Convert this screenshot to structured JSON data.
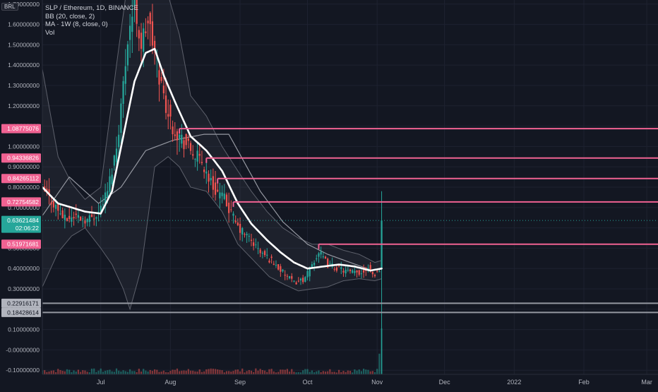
{
  "header": {
    "symbol_line": "SLP / Ethereum, 1D, BINANCE",
    "indicators": [
      "BB (20, close, 2)",
      "MA · 1W (8, close, 0)",
      "Vol"
    ],
    "currency_badge": "BRL"
  },
  "colors": {
    "background": "#131722",
    "up": "#26a69a",
    "down": "#ef5350",
    "level_line": "#f06292",
    "support_line": "#9598a1",
    "bb_line": "#5d606b",
    "ma_line": "#ffffff",
    "weekly_ma": "#9598a1",
    "current_price": "#26a69a"
  },
  "current_price_label": {
    "price": "0.63621484",
    "countdown": "02:06:22"
  },
  "chart_data": {
    "type": "candlestick",
    "title": "SLP / Ethereum, 1D, BINANCE",
    "ylim": [
      -0.12,
      1.72
    ],
    "y_ticks": [
      -0.1,
      0.0,
      0.1,
      0.2,
      0.3,
      0.4,
      0.5,
      0.6,
      0.7,
      0.8,
      0.9,
      1.0,
      1.1,
      1.2,
      1.3,
      1.4,
      1.5,
      1.6,
      1.7
    ],
    "y_tick_labels": [
      "-0.10000000",
      "-0.00000000",
      "0.10000000",
      "0.20000000",
      "0.30000000",
      "0.40000000",
      "0.50000000",
      "0.60000000",
      "0.70000000",
      "0.80000000",
      "0.90000000",
      "1.00000000",
      "1.10000000",
      "1.20000000",
      "1.30000000",
      "1.40000000",
      "1.50000000",
      "1.60000000",
      "1.70000000"
    ],
    "x_range": [
      "2021-06-05",
      "2022-03-06"
    ],
    "x_ticks": [
      {
        "date": "2021-07-01",
        "label": "Jul"
      },
      {
        "date": "2021-08-01",
        "label": "Aug"
      },
      {
        "date": "2021-09-01",
        "label": "Sep"
      },
      {
        "date": "2021-10-01",
        "label": "Oct"
      },
      {
        "date": "2021-11-01",
        "label": "Nov"
      },
      {
        "date": "2021-12-01",
        "label": "Dec"
      },
      {
        "date": "2022-01-01",
        "label": "2022"
      },
      {
        "date": "2022-02-01",
        "label": "Feb"
      },
      {
        "date": "2022-03-01",
        "label": "Mar"
      }
    ],
    "close_keypoints": [
      [
        "2021-06-05",
        0.79
      ],
      [
        "2021-06-10",
        0.72
      ],
      [
        "2021-06-15",
        0.64
      ],
      [
        "2021-06-20",
        0.66
      ],
      [
        "2021-06-25",
        0.64
      ],
      [
        "2021-06-30",
        0.68
      ],
      [
        "2021-07-04",
        0.78
      ],
      [
        "2021-07-08",
        1.0
      ],
      [
        "2021-07-11",
        1.3
      ],
      [
        "2021-07-13",
        1.55
      ],
      [
        "2021-07-16",
        1.7
      ],
      [
        "2021-07-19",
        1.5
      ],
      [
        "2021-07-22",
        1.62
      ],
      [
        "2021-07-26",
        1.4
      ],
      [
        "2021-07-29",
        1.25
      ],
      [
        "2021-08-01",
        1.12
      ],
      [
        "2021-08-05",
        1.05
      ],
      [
        "2021-08-10",
        0.98
      ],
      [
        "2021-08-15",
        0.92
      ],
      [
        "2021-08-20",
        0.8
      ],
      [
        "2021-08-25",
        0.74
      ],
      [
        "2021-08-31",
        0.6
      ],
      [
        "2021-09-05",
        0.55
      ],
      [
        "2021-09-10",
        0.48
      ],
      [
        "2021-09-15",
        0.44
      ],
      [
        "2021-09-20",
        0.38
      ],
      [
        "2021-09-25",
        0.33
      ],
      [
        "2021-09-30",
        0.35
      ],
      [
        "2021-10-03",
        0.42
      ],
      [
        "2021-10-06",
        0.48
      ],
      [
        "2021-10-10",
        0.42
      ],
      [
        "2021-10-15",
        0.4
      ],
      [
        "2021-10-20",
        0.38
      ],
      [
        "2021-10-25",
        0.38
      ],
      [
        "2021-10-28",
        0.41
      ],
      [
        "2021-10-30",
        0.37
      ],
      [
        "2021-11-01",
        0.38
      ],
      [
        "2021-11-02",
        0.4
      ],
      [
        "2021-11-03",
        0.636
      ]
    ],
    "last_candle": {
      "date": "2021-11-03",
      "open": 0.4,
      "high": 0.78,
      "low": -0.13,
      "close": 0.636
    },
    "sma20_keypoints": [
      [
        "2021-06-05",
        0.8
      ],
      [
        "2021-06-12",
        0.72
      ],
      [
        "2021-06-18",
        0.7
      ],
      [
        "2021-06-24",
        0.68
      ],
      [
        "2021-07-01",
        0.67
      ],
      [
        "2021-07-06",
        0.78
      ],
      [
        "2021-07-11",
        1.05
      ],
      [
        "2021-07-16",
        1.32
      ],
      [
        "2021-07-21",
        1.46
      ],
      [
        "2021-07-25",
        1.48
      ],
      [
        "2021-07-29",
        1.35
      ],
      [
        "2021-08-03",
        1.22
      ],
      [
        "2021-08-10",
        1.05
      ],
      [
        "2021-08-17",
        0.98
      ],
      [
        "2021-08-24",
        0.88
      ],
      [
        "2021-08-31",
        0.72
      ],
      [
        "2021-09-06",
        0.62
      ],
      [
        "2021-09-13",
        0.54
      ],
      [
        "2021-09-19",
        0.48
      ],
      [
        "2021-09-25",
        0.43
      ],
      [
        "2021-10-01",
        0.4
      ],
      [
        "2021-10-08",
        0.41
      ],
      [
        "2021-10-15",
        0.42
      ],
      [
        "2021-10-22",
        0.41
      ],
      [
        "2021-10-29",
        0.39
      ],
      [
        "2021-11-03",
        0.4
      ]
    ],
    "bb_upper_keypoints": [
      [
        "2021-06-05",
        1.38
      ],
      [
        "2021-06-12",
        0.95
      ],
      [
        "2021-06-18",
        0.82
      ],
      [
        "2021-06-24",
        0.74
      ],
      [
        "2021-07-01",
        0.8
      ],
      [
        "2021-07-08",
        1.4
      ],
      [
        "2021-07-14",
        1.9
      ],
      [
        "2021-07-22",
        1.92
      ],
      [
        "2021-07-29",
        1.82
      ],
      [
        "2021-08-05",
        1.55
      ],
      [
        "2021-08-10",
        1.25
      ],
      [
        "2021-08-17",
        1.15
      ],
      [
        "2021-08-24",
        1.0
      ],
      [
        "2021-08-31",
        0.88
      ],
      [
        "2021-09-06",
        0.78
      ],
      [
        "2021-09-13",
        0.68
      ],
      [
        "2021-09-20",
        0.6
      ],
      [
        "2021-09-27",
        0.55
      ],
      [
        "2021-10-03",
        0.52
      ],
      [
        "2021-10-10",
        0.52
      ],
      [
        "2021-10-17",
        0.49
      ],
      [
        "2021-10-24",
        0.47
      ],
      [
        "2021-10-31",
        0.43
      ],
      [
        "2021-11-03",
        0.44
      ]
    ],
    "bb_lower_keypoints": [
      [
        "2021-06-05",
        0.31
      ],
      [
        "2021-06-12",
        0.48
      ],
      [
        "2021-06-18",
        0.56
      ],
      [
        "2021-06-24",
        0.6
      ],
      [
        "2021-07-01",
        0.5
      ],
      [
        "2021-07-06",
        0.42
      ],
      [
        "2021-07-11",
        0.3
      ],
      [
        "2021-07-14",
        0.2
      ],
      [
        "2021-07-19",
        0.4
      ],
      [
        "2021-07-25",
        0.9
      ],
      [
        "2021-07-31",
        0.95
      ],
      [
        "2021-08-05",
        0.9
      ],
      [
        "2021-08-10",
        0.8
      ],
      [
        "2021-08-17",
        0.78
      ],
      [
        "2021-08-24",
        0.68
      ],
      [
        "2021-08-31",
        0.52
      ],
      [
        "2021-09-07",
        0.44
      ],
      [
        "2021-09-14",
        0.36
      ],
      [
        "2021-09-21",
        0.32
      ],
      [
        "2021-09-27",
        0.29
      ],
      [
        "2021-10-03",
        0.3
      ],
      [
        "2021-10-10",
        0.31
      ],
      [
        "2021-10-17",
        0.34
      ],
      [
        "2021-10-24",
        0.35
      ],
      [
        "2021-10-31",
        0.34
      ],
      [
        "2021-11-03",
        0.35
      ]
    ],
    "weekly_ma_keypoints": [
      [
        "2021-06-05",
        0.66
      ],
      [
        "2021-06-17",
        0.85
      ],
      [
        "2021-06-30",
        0.72
      ],
      [
        "2021-07-10",
        0.8
      ],
      [
        "2021-07-21",
        0.98
      ],
      [
        "2021-08-02",
        1.03
      ],
      [
        "2021-08-16",
        1.06
      ],
      [
        "2021-08-27",
        1.06
      ],
      [
        "2021-09-10",
        0.78
      ],
      [
        "2021-09-20",
        0.63
      ],
      [
        "2021-10-01",
        0.52
      ],
      [
        "2021-10-10",
        0.47
      ],
      [
        "2021-10-20",
        0.43
      ],
      [
        "2021-10-30",
        0.39
      ],
      [
        "2021-11-03",
        0.4
      ]
    ],
    "horizontal_levels": [
      {
        "value": 1.08775076,
        "label": "1.08775076",
        "from": "2021-08-05",
        "kind": "resistance"
      },
      {
        "value": 0.94336826,
        "label": "0.94336826",
        "from": "2021-08-17",
        "kind": "resistance"
      },
      {
        "value": 0.84265112,
        "label": "0.84265112",
        "from": "2021-08-22",
        "kind": "resistance"
      },
      {
        "value": 0.72754582,
        "label": "0.72754582",
        "from": "2021-08-29",
        "kind": "resistance"
      },
      {
        "value": 0.51971681,
        "label": "0.51971681",
        "from": "2021-10-06",
        "kind": "resistance"
      },
      {
        "value": 0.22916171,
        "label": "0.22916171",
        "from": "2021-06-05",
        "kind": "support"
      },
      {
        "value": 0.18428614,
        "label": "0.18428614",
        "from": "2021-06-05",
        "kind": "support"
      }
    ],
    "volume_spikes": [
      {
        "date": "2021-11-02",
        "relative": 0.45
      },
      {
        "date": "2021-11-03",
        "relative": 1.0
      }
    ]
  }
}
